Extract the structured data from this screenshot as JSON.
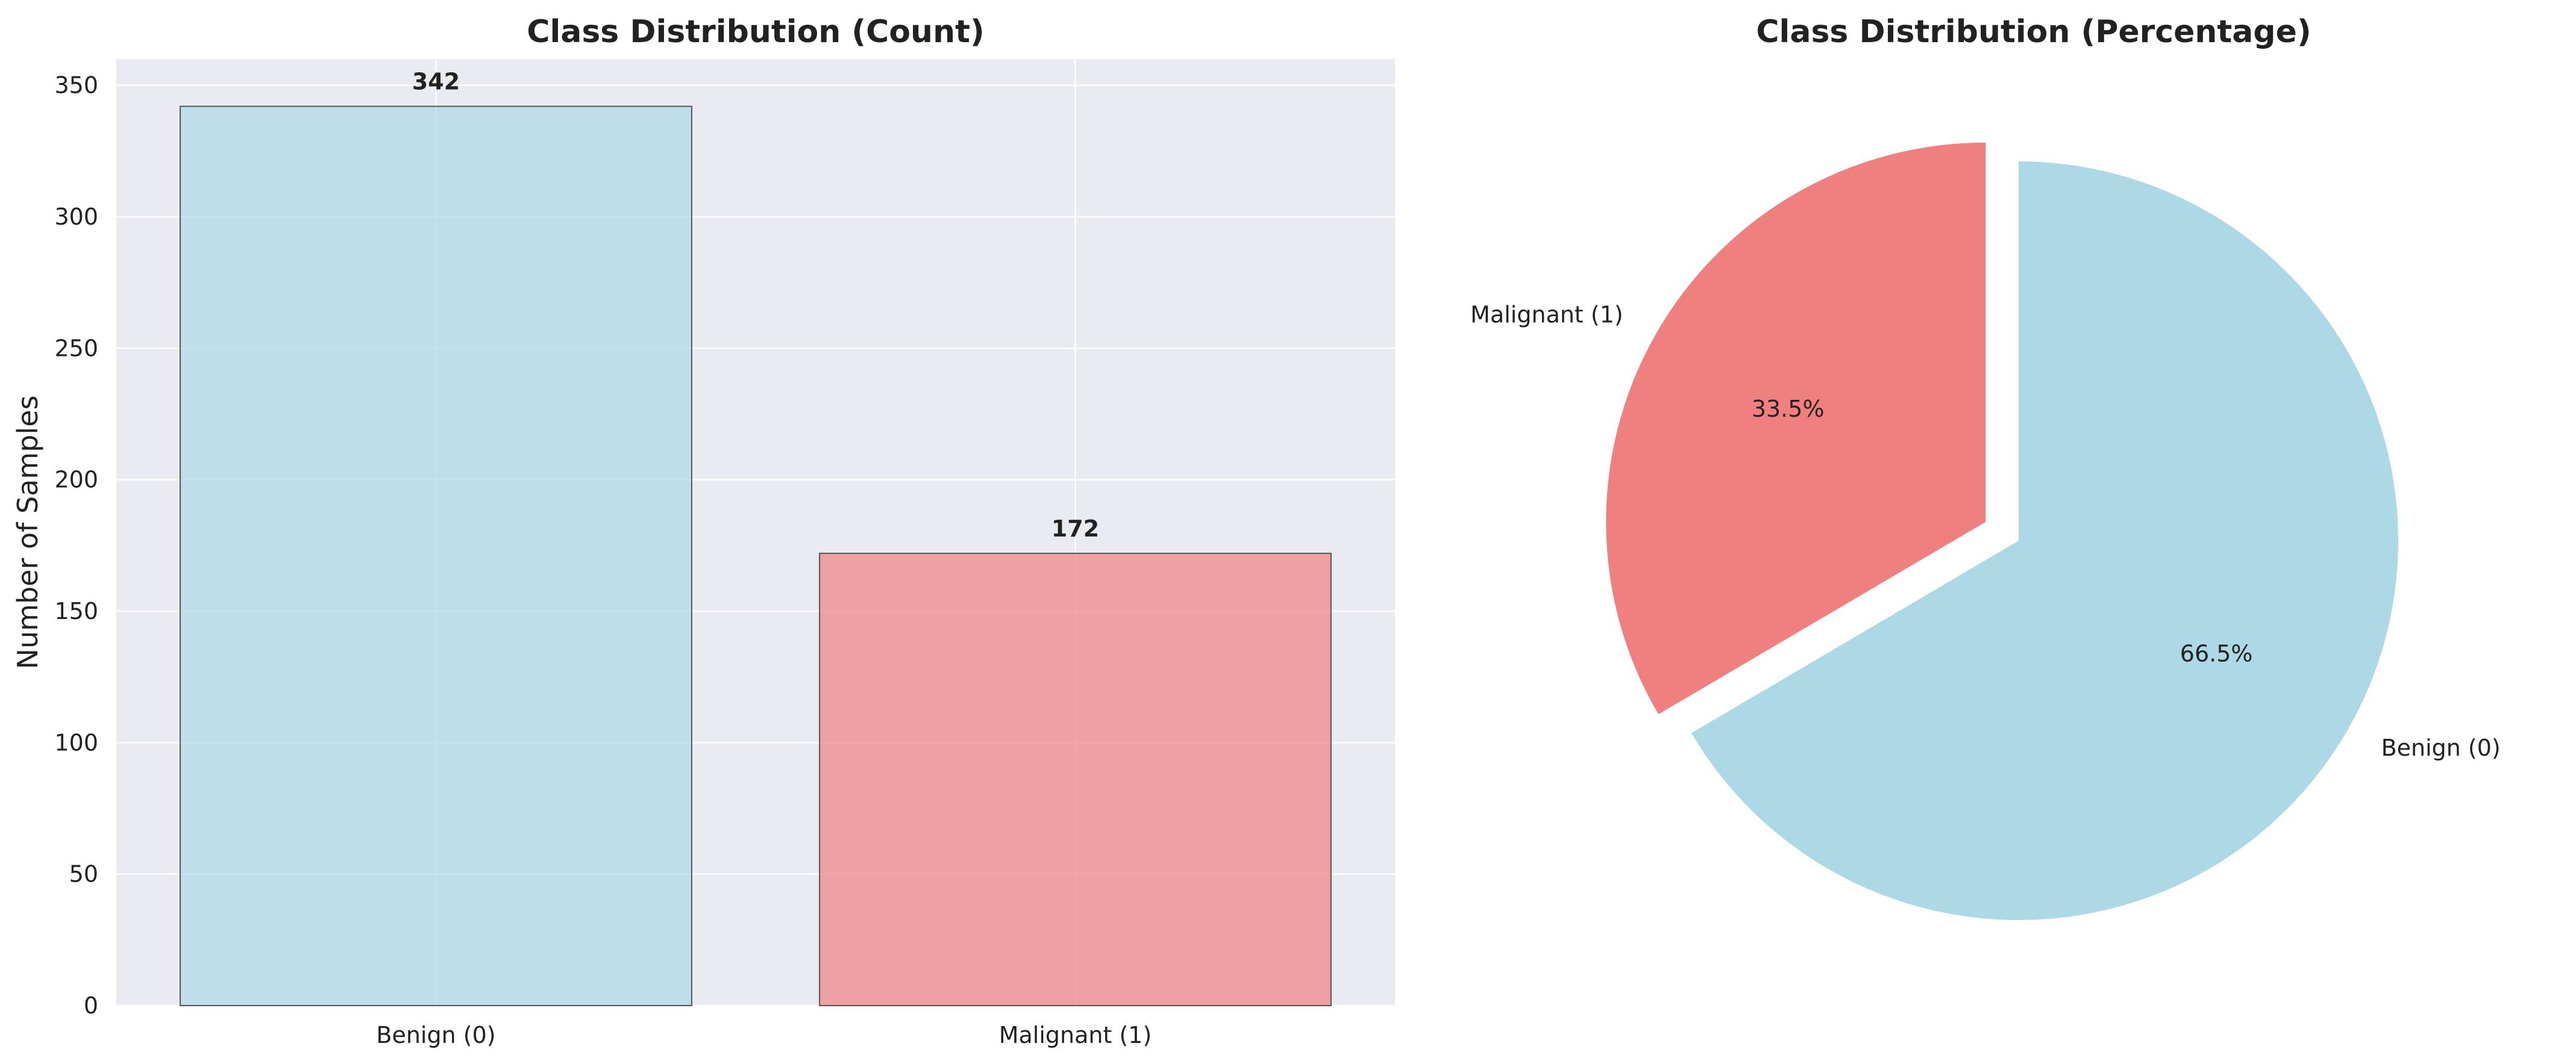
{
  "chart_data": [
    {
      "type": "bar",
      "title": "Class Distribution (Count)",
      "xlabel": "",
      "ylabel": "Number of Samples",
      "categories": [
        "Benign (0)",
        "Malignant (1)"
      ],
      "values": [
        342,
        172
      ],
      "value_labels": [
        "342",
        "172"
      ],
      "colors": [
        "#add8e6",
        "#f08080"
      ],
      "ylim": [
        0,
        360
      ],
      "yticks": [
        0,
        50,
        100,
        150,
        200,
        250,
        300,
        350
      ],
      "ytick_labels": [
        "0",
        "50",
        "100",
        "150",
        "200",
        "250",
        "300",
        "350"
      ],
      "grid": true
    },
    {
      "type": "pie",
      "title": "Class Distribution (Percentage)",
      "labels": [
        "Benign (0)",
        "Malignant (1)"
      ],
      "values": [
        342,
        172
      ],
      "percent_labels": [
        "66.5%",
        "33.5%"
      ],
      "colors": [
        "#add8e6",
        "#f08080"
      ],
      "explode": [
        0,
        0.1
      ],
      "start_angle": 90
    }
  ]
}
